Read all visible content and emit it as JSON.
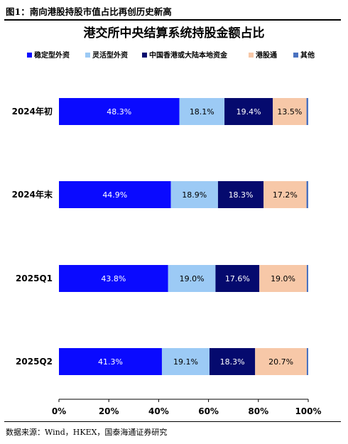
{
  "figure_caption": "图1：南向港股持股市值占比再创历史新高",
  "source_note": "数据来源：Wind，HKEX，国泰海通证券研究",
  "chart_data": {
    "type": "bar",
    "orientation": "horizontal",
    "stacked": true,
    "title": "港交所中央结算系统持股金额占比",
    "categories": [
      "2024年初",
      "2024年末",
      "2025Q1",
      "2025Q2"
    ],
    "series": [
      {
        "name": "稳定型外资",
        "color": "#0a0aff",
        "values": [
          48.3,
          44.9,
          43.8,
          41.3
        ],
        "labels": [
          "48.3%",
          "44.9%",
          "43.8%",
          "41.3%"
        ],
        "label_color": "#ffffff"
      },
      {
        "name": "灵活型外资",
        "color": "#9ccaf5",
        "values": [
          18.1,
          18.9,
          19.0,
          19.1
        ],
        "labels": [
          "18.1%",
          "18.9%",
          "19.0%",
          "19.1%"
        ],
        "label_color": "#000000"
      },
      {
        "name": "中国香港或大陆本地资金",
        "color": "#050a6e",
        "values": [
          19.4,
          18.3,
          17.6,
          18.3
        ],
        "labels": [
          "19.4%",
          "18.3%",
          "17.6%",
          "18.3%"
        ],
        "label_color": "#ffffff"
      },
      {
        "name": "港股通",
        "color": "#f7c8a8",
        "values": [
          13.5,
          17.2,
          19.0,
          20.7
        ],
        "labels": [
          "13.5%",
          "17.2%",
          "19.0%",
          "20.7%"
        ],
        "label_color": "#000000"
      },
      {
        "name": "其他",
        "color": "#4a72c0",
        "values": [
          0.7,
          0.7,
          0.6,
          0.6
        ],
        "labels": [
          "",
          "",
          "",
          ""
        ],
        "label_color": "#000000"
      }
    ],
    "xlim": [
      0,
      100
    ],
    "x_ticks": [
      "0%",
      "20%",
      "40%",
      "60%",
      "80%",
      "100%"
    ],
    "grid": false,
    "legend_position": "top"
  }
}
